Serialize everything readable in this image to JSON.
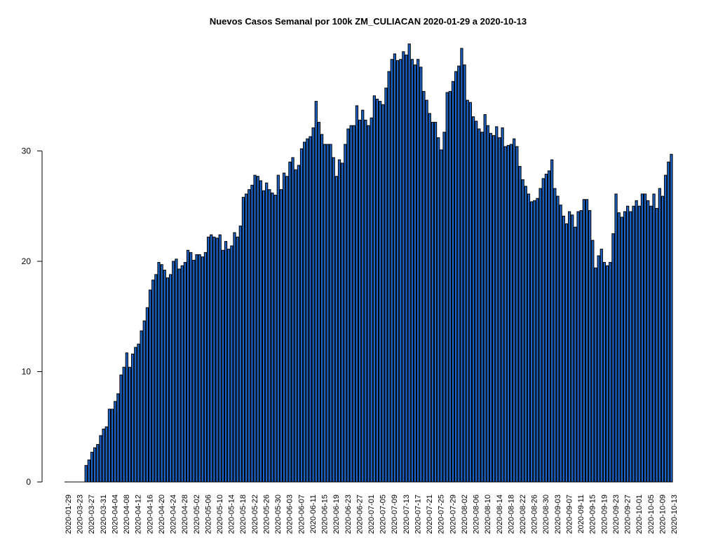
{
  "chart_data": {
    "type": "bar",
    "title": "Nuevos Casos Semanal por 100k ZM_CULIACAN 2020-01-29 a 2020-10-13",
    "xlabel": "",
    "ylabel": "",
    "ylim": [
      0,
      40
    ],
    "y_ticks": [
      0,
      10,
      20,
      30
    ],
    "grid": false,
    "legend": "none",
    "bar_color": "#1E64C8",
    "bar_edge_color": "#000000",
    "x_tick_labels": [
      "2020-01-29",
      "2020-03-23",
      "2020-03-27",
      "2020-03-31",
      "2020-04-04",
      "2020-04-08",
      "2020-04-12",
      "2020-04-16",
      "2020-04-20",
      "2020-04-24",
      "2020-04-28",
      "2020-05-02",
      "2020-05-06",
      "2020-05-10",
      "2020-05-14",
      "2020-05-18",
      "2020-05-22",
      "2020-05-26",
      "2020-05-30",
      "2020-06-03",
      "2020-06-07",
      "2020-06-11",
      "2020-06-15",
      "2020-06-19",
      "2020-06-23",
      "2020-06-27",
      "2020-07-01",
      "2020-07-05",
      "2020-07-09",
      "2020-07-13",
      "2020-07-17",
      "2020-07-21",
      "2020-07-25",
      "2020-07-29",
      "2020-08-02",
      "2020-08-06",
      "2020-08-10",
      "2020-08-14",
      "2020-08-18",
      "2020-08-22",
      "2020-08-26",
      "2020-08-30",
      "2020-09-03",
      "2020-09-07",
      "2020-09-11",
      "2020-09-15",
      "2020-09-19",
      "2020-09-23",
      "2020-09-27",
      "2020-10-01",
      "2020-10-05",
      "2020-10-09",
      "2020-10-13"
    ],
    "values": [
      0,
      0,
      0,
      0,
      0,
      0,
      0,
      1.5,
      2.0,
      2.7,
      3.1,
      3.4,
      4.2,
      4.8,
      5.0,
      6.6,
      6.6,
      7.3,
      8.0,
      9.7,
      10.4,
      11.7,
      10.4,
      11.6,
      12.2,
      12.5,
      13.7,
      14.6,
      15.8,
      17.4,
      18.3,
      18.8,
      19.9,
      19.7,
      19.2,
      18.5,
      18.8,
      20.0,
      20.2,
      19.3,
      19.6,
      19.9,
      21.0,
      20.8,
      20.1,
      20.6,
      20.6,
      20.4,
      20.8,
      22.2,
      22.4,
      22.2,
      22.1,
      22.4,
      21.0,
      21.8,
      21.1,
      21.4,
      22.6,
      22.2,
      23.2,
      25.8,
      26.1,
      26.5,
      26.9,
      27.8,
      27.7,
      27.3,
      26.4,
      27.1,
      26.5,
      26.2,
      26.0,
      27.8,
      26.5,
      28.0,
      27.7,
      29.0,
      29.4,
      28.3,
      28.7,
      30.2,
      30.8,
      31.1,
      31.3,
      32.1,
      34.5,
      32.6,
      31.5,
      30.6,
      30.6,
      30.6,
      29.4,
      27.7,
      29.2,
      28.9,
      30.6,
      32.0,
      32.3,
      32.3,
      34.1,
      32.8,
      33.7,
      32.8,
      32.3,
      33.0,
      35.0,
      34.7,
      34.5,
      34.2,
      35.7,
      37.2,
      38.3,
      38.8,
      38.2,
      38.3,
      39.0,
      38.7,
      39.7,
      38.3,
      37.8,
      38.3,
      37.6,
      35.4,
      34.6,
      33.4,
      32.6,
      32.6,
      31.2,
      30.1,
      31.7,
      35.3,
      35.4,
      36.3,
      37.2,
      37.7,
      39.3,
      37.8,
      34.6,
      34.4,
      33.1,
      32.7,
      32.0,
      31.7,
      33.3,
      32.3,
      31.6,
      31.4,
      32.2,
      31.2,
      32.1,
      30.4,
      30.5,
      30.6,
      31.1,
      30.4,
      28.6,
      27.4,
      26.8,
      26.1,
      25.4,
      25.5,
      25.7,
      26.6,
      27.5,
      27.9,
      28.2,
      29.2,
      26.6,
      25.9,
      25.1,
      24.1,
      23.4,
      24.5,
      24.2,
      23.1,
      24.5,
      24.6,
      25.6,
      25.6,
      24.6,
      21.9,
      19.4,
      20.5,
      21.1,
      19.9,
      19.6,
      19.9,
      22.5,
      26.1,
      24.4,
      24.0,
      24.5,
      25.0,
      24.5,
      25.0,
      25.5,
      25.0,
      26.1,
      26.1,
      25.5,
      25.0,
      26.1,
      24.8,
      26.6,
      25.9,
      27.8,
      29.0,
      29.7
    ]
  }
}
